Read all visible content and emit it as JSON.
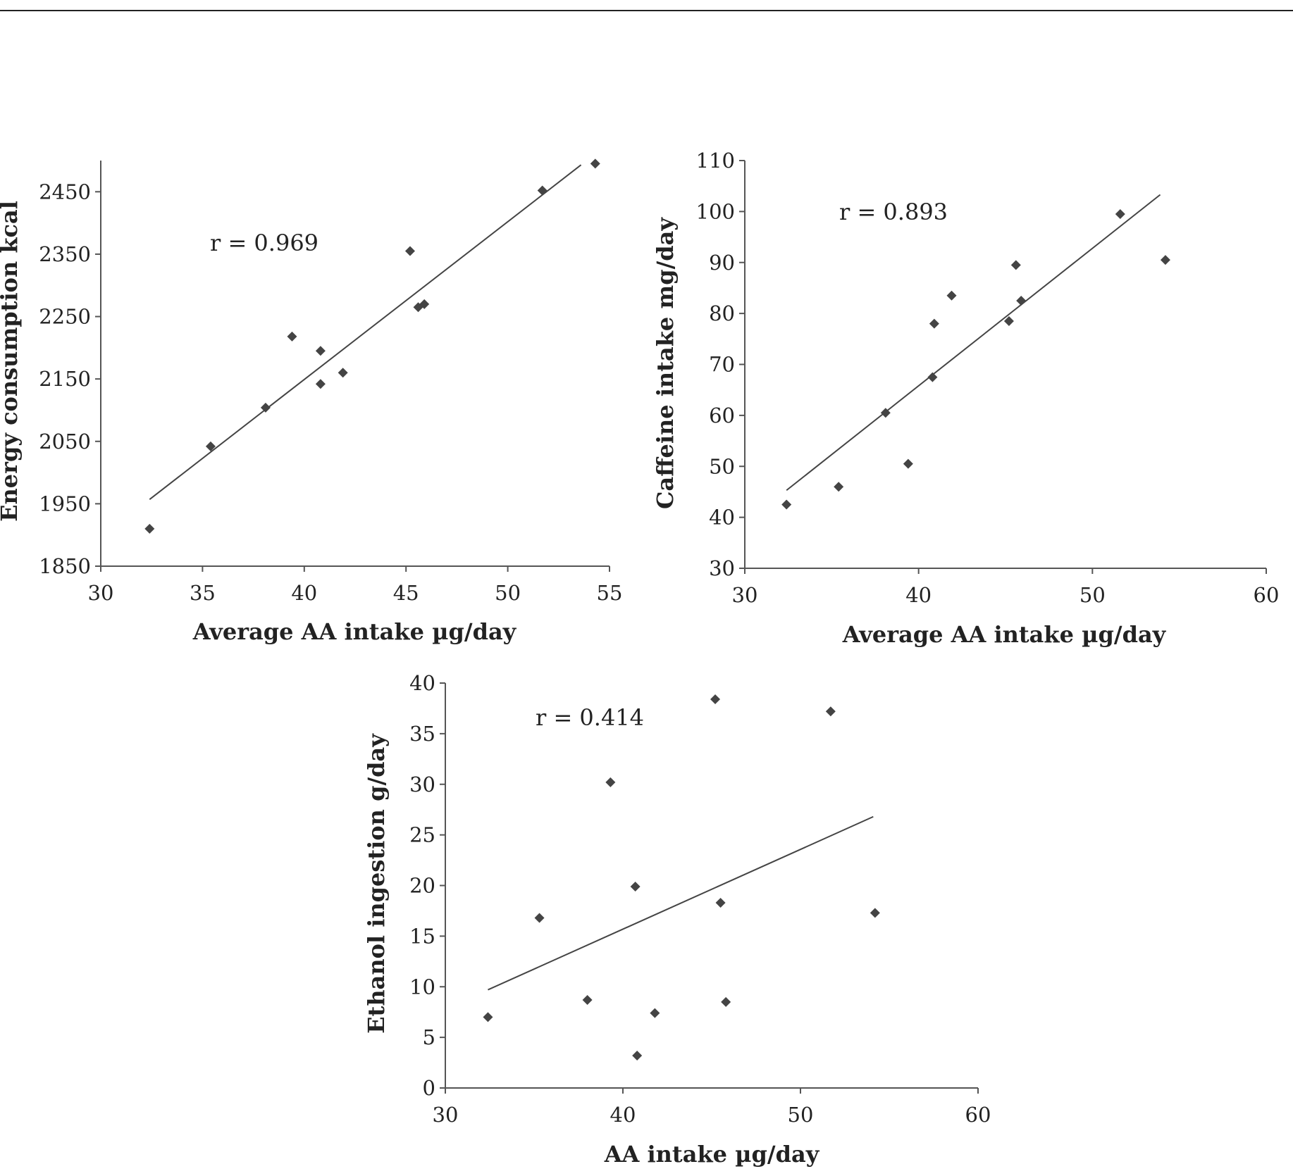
{
  "chart_data": [
    {
      "type": "scatter",
      "ylabel": "Energy consumption kcal",
      "xlabel": "Average AA intake µg/day",
      "annotation": "r = 0.969",
      "xlim": [
        30,
        55
      ],
      "ylim": [
        1850,
        2500
      ],
      "xticks": [
        30,
        35,
        40,
        45,
        50,
        55
      ],
      "yticks": [
        1850,
        1950,
        2050,
        2150,
        2250,
        2350,
        2450
      ],
      "trendline": [
        [
          32.4,
          1957
        ],
        [
          53.6,
          2493
        ]
      ],
      "points": [
        {
          "x": 32.4,
          "y": 1910
        },
        {
          "x": 35.4,
          "y": 2042
        },
        {
          "x": 38.1,
          "y": 2104
        },
        {
          "x": 39.4,
          "y": 2218
        },
        {
          "x": 40.8,
          "y": 2195
        },
        {
          "x": 40.8,
          "y": 2142
        },
        {
          "x": 41.9,
          "y": 2160
        },
        {
          "x": 45.2,
          "y": 2355
        },
        {
          "x": 45.6,
          "y": 2265
        },
        {
          "x": 45.9,
          "y": 2270
        },
        {
          "x": 51.7,
          "y": 2452
        },
        {
          "x": 54.3,
          "y": 2495
        }
      ]
    },
    {
      "type": "scatter",
      "ylabel": "Caffeine intake mg/day",
      "xlabel": "Average AA intake µg/day",
      "annotation": "r = 0.893",
      "xlim": [
        30,
        60
      ],
      "ylim": [
        30,
        110
      ],
      "xticks": [
        30,
        40,
        50,
        60
      ],
      "yticks": [
        30,
        40,
        50,
        60,
        70,
        80,
        90,
        100,
        110
      ],
      "trendline": [
        [
          32.4,
          45.3
        ],
        [
          53.9,
          103.3
        ]
      ],
      "points": [
        {
          "x": 32.4,
          "y": 42.5
        },
        {
          "x": 35.4,
          "y": 46
        },
        {
          "x": 38.1,
          "y": 60.5
        },
        {
          "x": 39.4,
          "y": 50.5
        },
        {
          "x": 40.8,
          "y": 67.5
        },
        {
          "x": 40.9,
          "y": 78
        },
        {
          "x": 41.9,
          "y": 83.5
        },
        {
          "x": 45.2,
          "y": 78.5
        },
        {
          "x": 45.6,
          "y": 89.5
        },
        {
          "x": 45.9,
          "y": 82.5
        },
        {
          "x": 51.6,
          "y": 99.5
        },
        {
          "x": 54.2,
          "y": 90.5
        }
      ]
    },
    {
      "type": "scatter",
      "ylabel": "Ethanol ingestion g/day",
      "xlabel": "AA intake µg/day",
      "annotation": "r = 0.414",
      "xlim": [
        30,
        60
      ],
      "ylim": [
        0,
        40
      ],
      "xticks": [
        30,
        40,
        50,
        60
      ],
      "yticks": [
        0,
        5,
        10,
        15,
        20,
        25,
        30,
        35,
        40
      ],
      "trendline": [
        [
          32.4,
          9.7
        ],
        [
          54.1,
          26.8
        ]
      ],
      "points": [
        {
          "x": 32.4,
          "y": 7
        },
        {
          "x": 35.3,
          "y": 16.8
        },
        {
          "x": 38.0,
          "y": 8.7
        },
        {
          "x": 39.3,
          "y": 30.2
        },
        {
          "x": 40.7,
          "y": 19.9
        },
        {
          "x": 40.8,
          "y": 3.2
        },
        {
          "x": 41.8,
          "y": 7.4
        },
        {
          "x": 45.2,
          "y": 38.4
        },
        {
          "x": 45.5,
          "y": 18.3
        },
        {
          "x": 45.8,
          "y": 8.5
        },
        {
          "x": 51.7,
          "y": 37.2
        },
        {
          "x": 54.2,
          "y": 17.3
        }
      ]
    }
  ]
}
